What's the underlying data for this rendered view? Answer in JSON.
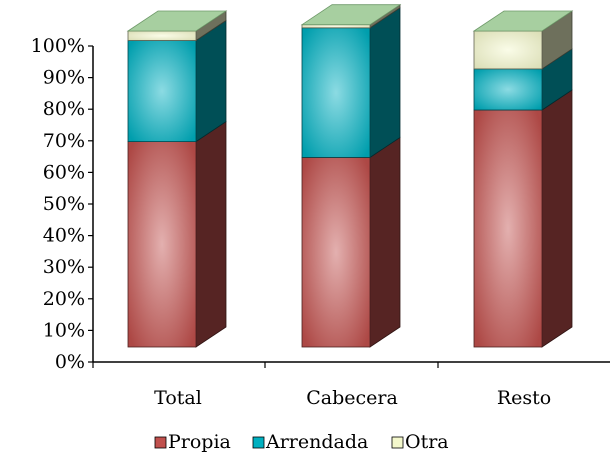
{
  "chart_data": {
    "type": "bar",
    "stacked": true,
    "percent": true,
    "three_d": true,
    "categories": [
      "Total",
      "Cabecera",
      "Resto"
    ],
    "series": [
      {
        "name": "Propia",
        "values": [
          65,
          60,
          75
        ],
        "color": "#c0504d"
      },
      {
        "name": "Arrendada",
        "values": [
          32,
          41,
          13
        ],
        "color": "#00b0c0"
      },
      {
        "name": "Otra",
        "values": [
          3,
          1,
          12
        ],
        "color": "#f4f8cc"
      }
    ],
    "y_ticks": [
      "0%",
      "10%",
      "20%",
      "30%",
      "40%",
      "50%",
      "60%",
      "70%",
      "80%",
      "90%",
      "100%"
    ],
    "ylim": [
      0,
      100
    ],
    "title": "",
    "xlabel": "",
    "ylabel": "",
    "grid": false,
    "legend_position": "bottom"
  }
}
